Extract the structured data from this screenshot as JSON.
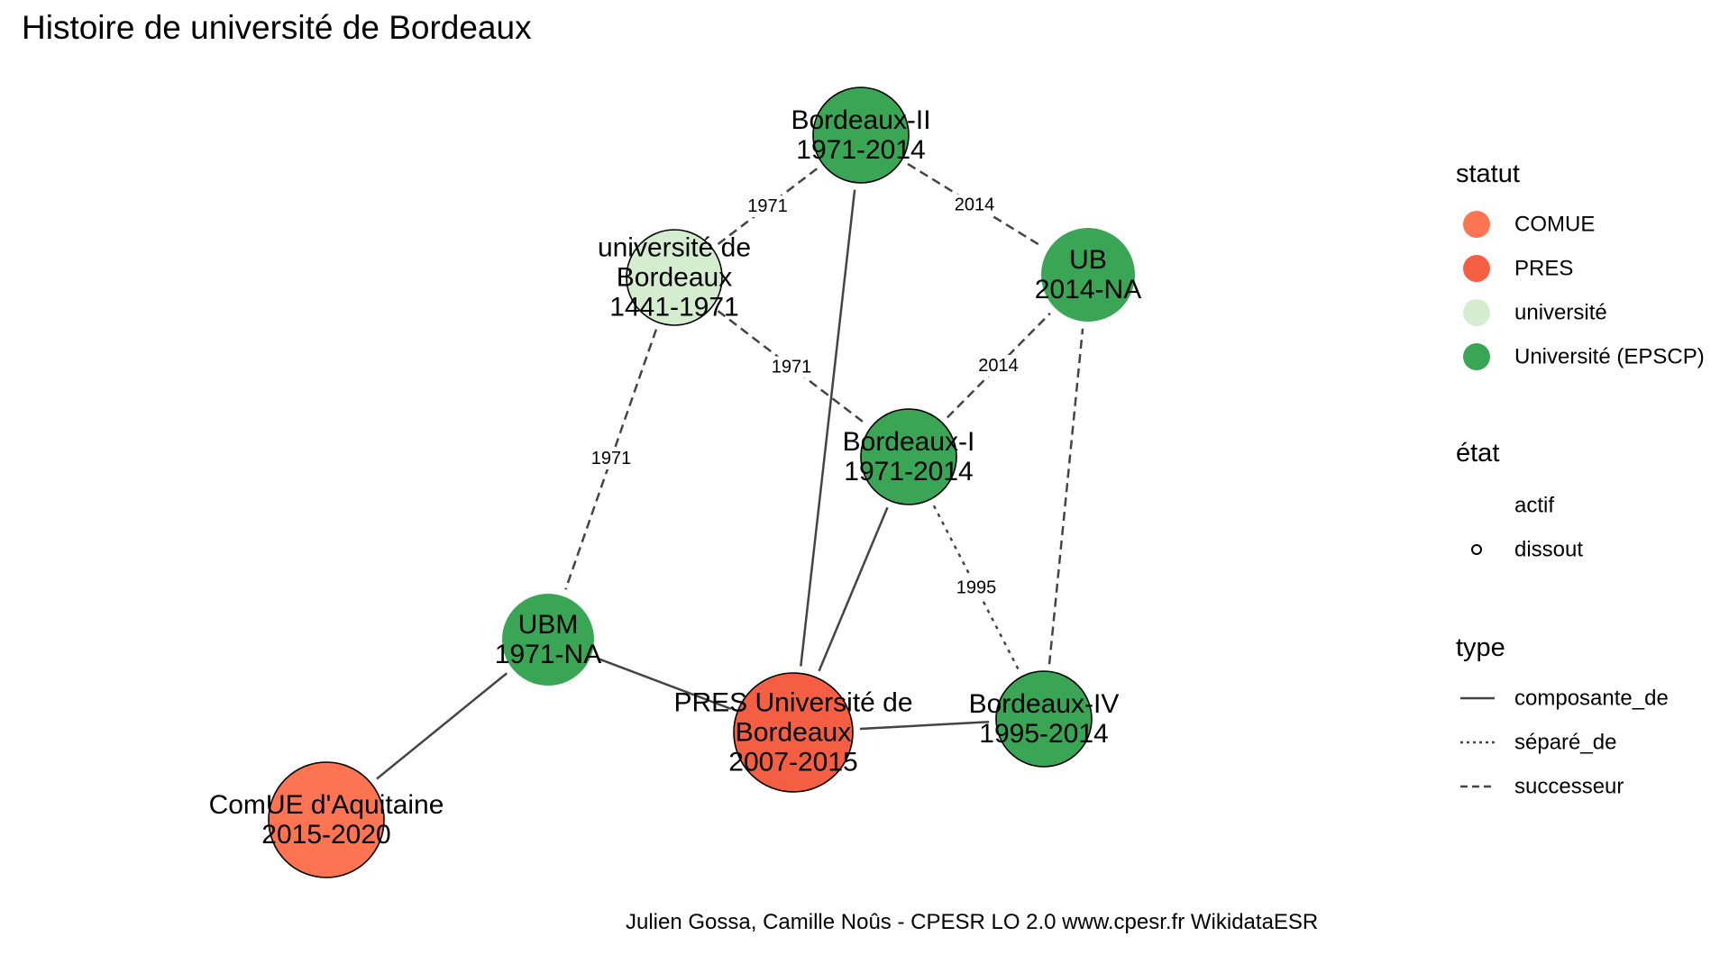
{
  "title": "Histoire de université de Bordeaux",
  "caption": "Julien Gossa, Camille Noûs - CPESR LO 2.0 www.cpesr.fr WikidataESR",
  "colors": {
    "COMUE": "#FC7452",
    "PRES": "#F45F43",
    "université": "#D5EDCF",
    "Université (EPSCP)": "#3AA555",
    "edge": "#444444"
  },
  "nodes": [
    {
      "id": "bx2",
      "lines": [
        "Bordeaux-II",
        "1971-2014"
      ],
      "statut": "Université (EPSCP)",
      "etat": "dissout"
    },
    {
      "id": "ub_old",
      "lines": [
        "université de",
        "Bordeaux",
        "1441-1971"
      ],
      "statut": "université",
      "etat": "dissout"
    },
    {
      "id": "ub",
      "lines": [
        "UB",
        "2014-NA"
      ],
      "statut": "Université (EPSCP)",
      "etat": "actif"
    },
    {
      "id": "bx1",
      "lines": [
        "Bordeaux-I",
        "1971-2014"
      ],
      "statut": "Université (EPSCP)",
      "etat": "dissout"
    },
    {
      "id": "ubm",
      "lines": [
        "UBM",
        "1971-NA"
      ],
      "statut": "Université (EPSCP)",
      "etat": "actif"
    },
    {
      "id": "pres",
      "lines": [
        "PRES Université de",
        "Bordeaux",
        "2007-2015"
      ],
      "statut": "PRES",
      "etat": "dissout"
    },
    {
      "id": "bx4",
      "lines": [
        "Bordeaux-IV",
        "1995-2014"
      ],
      "statut": "Université (EPSCP)",
      "etat": "dissout"
    },
    {
      "id": "comue",
      "lines": [
        "ComUE d'Aquitaine",
        "2015-2020"
      ],
      "statut": "COMUE",
      "etat": "dissout"
    }
  ],
  "edges": [
    {
      "from": "ub_old",
      "to": "bx2",
      "type": "successeur",
      "label": "1971"
    },
    {
      "from": "bx2",
      "to": "ub",
      "type": "successeur",
      "label": "2014"
    },
    {
      "from": "ub_old",
      "to": "bx1",
      "type": "successeur",
      "label": "1971"
    },
    {
      "from": "bx1",
      "to": "ub",
      "type": "successeur",
      "label": "2014"
    },
    {
      "from": "ub_old",
      "to": "ubm",
      "type": "successeur",
      "label": "1971"
    },
    {
      "from": "bx1",
      "to": "bx4",
      "type": "séparé_de",
      "label": "1995"
    },
    {
      "from": "bx4",
      "to": "ub",
      "type": "successeur",
      "label": ""
    },
    {
      "from": "bx2",
      "to": "pres",
      "type": "composante_de",
      "label": ""
    },
    {
      "from": "bx1",
      "to": "pres",
      "type": "composante_de",
      "label": ""
    },
    {
      "from": "ubm",
      "to": "pres",
      "type": "composante_de",
      "label": ""
    },
    {
      "from": "bx4",
      "to": "pres",
      "type": "composante_de",
      "label": ""
    },
    {
      "from": "ubm",
      "to": "comue",
      "type": "composante_de",
      "label": ""
    }
  ],
  "legend": {
    "statut": {
      "title": "statut",
      "items": [
        "COMUE",
        "PRES",
        "université",
        "Université (EPSCP)"
      ]
    },
    "etat": {
      "title": "état",
      "items": [
        "actif",
        "dissout"
      ]
    },
    "type": {
      "title": "type",
      "items": [
        "composante_de",
        "séparé_de",
        "successeur"
      ]
    }
  }
}
